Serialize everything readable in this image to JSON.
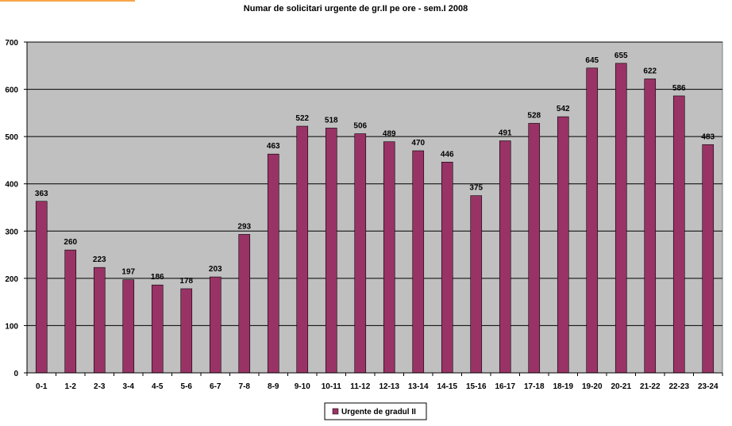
{
  "chart_data": {
    "type": "bar",
    "title": "Numar de solicitari urgente de gr.II pe ore - sem.I 2008",
    "xlabel": "",
    "ylabel": "",
    "ylim": [
      0,
      700
    ],
    "yticks": [
      "0",
      "100",
      "200",
      "300",
      "400",
      "500",
      "600",
      "700"
    ],
    "categories": [
      "0-1",
      "1-2",
      "2-3",
      "3-4",
      "4-5",
      "5-6",
      "6-7",
      "7-8",
      "8-9",
      "9-10",
      "10-11",
      "11-12",
      "12-13",
      "13-14",
      "14-15",
      "15-16",
      "16-17",
      "17-18",
      "18-19",
      "19-20",
      "20-21",
      "21-22",
      "22-23",
      "23-24"
    ],
    "series": [
      {
        "name": "Urgente de gradul II",
        "values": [
          363,
          260,
          223,
          197,
          186,
          178,
          203,
          293,
          463,
          522,
          518,
          506,
          489,
          470,
          446,
          375,
          491,
          528,
          542,
          645,
          655,
          622,
          586,
          483
        ]
      }
    ],
    "colors": {
      "bar": "#993366",
      "plot_background": "#c0c0c0",
      "gridline": "#000000",
      "accent": "#f7a54a"
    },
    "grid": true,
    "legend_position": "bottom"
  }
}
